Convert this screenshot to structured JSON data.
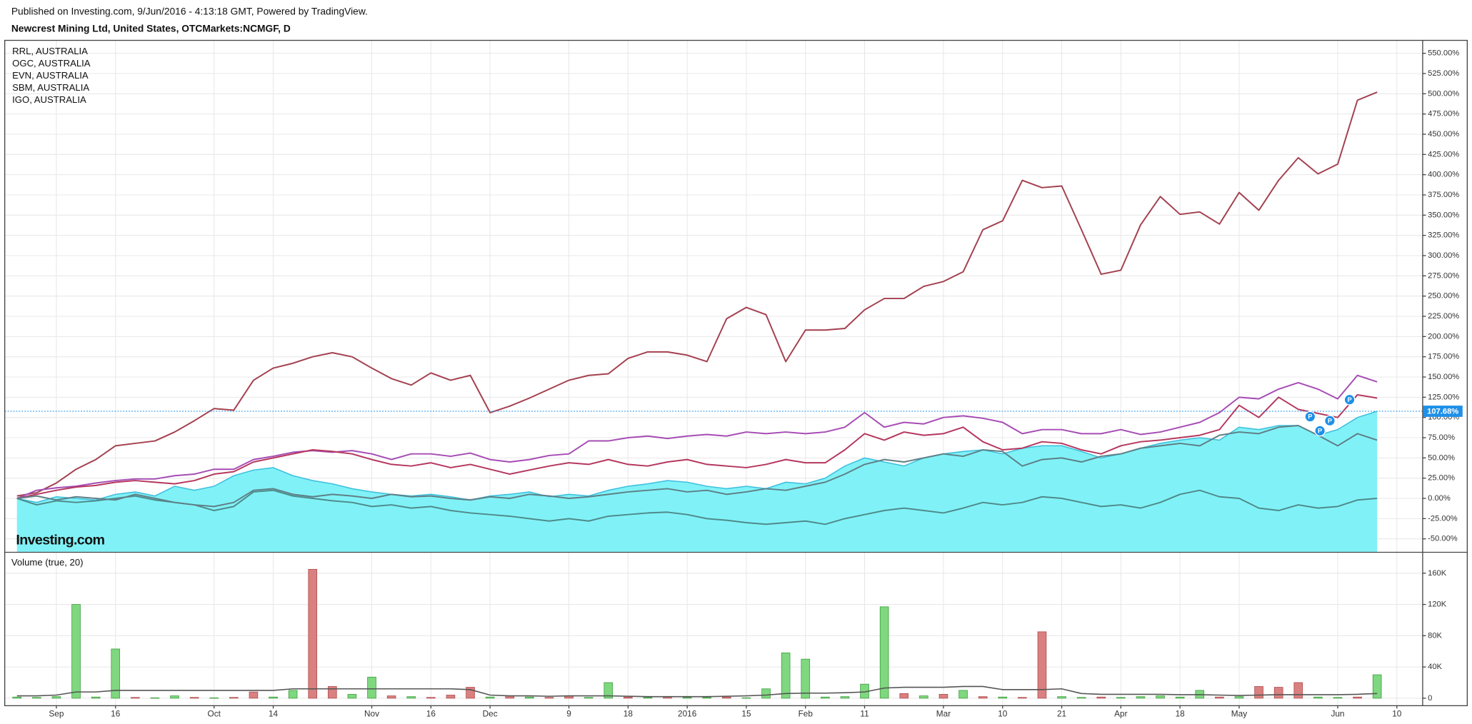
{
  "chart_data": [
    {
      "type": "line",
      "subtitle": "Published on Investing.com, 9/Jun/2016 - 4:13:18 GMT, Powered by TradingView.",
      "title": "Newcrest Mining Ltd, United States, OTCMarkets:NCMGF, D",
      "watermark": "Investing.com",
      "categories": [
        null,
        null,
        "Sep",
        null,
        null,
        "16",
        null,
        null,
        null,
        null,
        "Oct",
        null,
        null,
        "14",
        null,
        null,
        null,
        null,
        "Nov",
        null,
        null,
        "16",
        null,
        null,
        "Dec",
        null,
        null,
        null,
        "9",
        null,
        null,
        "18",
        null,
        null,
        "2016",
        null,
        null,
        "15",
        null,
        null,
        "Feb",
        null,
        null,
        "11",
        null,
        null,
        null,
        "Mar",
        null,
        null,
        "10",
        null,
        null,
        "21",
        null,
        null,
        "Apr",
        null,
        null,
        "18",
        null,
        null,
        "May",
        null,
        null,
        null,
        null,
        "Jun",
        null,
        null,
        "10"
      ],
      "ylim": [
        -66,
        566
      ],
      "yticks": [
        {
          "value": -50,
          "label": "-50.00%"
        },
        {
          "value": -25,
          "label": "-25.00%"
        },
        {
          "value": 0,
          "label": "0.00%"
        },
        {
          "value": 25,
          "label": "25.00%"
        },
        {
          "value": 50,
          "label": "50.00%"
        },
        {
          "value": 75,
          "label": "75.00%"
        },
        {
          "value": 100,
          "label": "100.00%"
        },
        {
          "value": 125,
          "label": "125.00%"
        },
        {
          "value": 150,
          "label": "150.00%"
        },
        {
          "value": 175,
          "label": "175.00%"
        },
        {
          "value": 200,
          "label": "200.00%"
        },
        {
          "value": 225,
          "label": "225.00%"
        },
        {
          "value": 250,
          "label": "250.00%"
        },
        {
          "value": 275,
          "label": "275.00%"
        },
        {
          "value": 300,
          "label": "300.00%"
        },
        {
          "value": 325,
          "label": "325.00%"
        },
        {
          "value": 350,
          "label": "350.00%"
        },
        {
          "value": 375,
          "label": "375.00%"
        },
        {
          "value": 400,
          "label": "400.00%"
        },
        {
          "value": 425,
          "label": "425.00%"
        },
        {
          "value": 450,
          "label": "450.00%"
        },
        {
          "value": 475,
          "label": "475.00%"
        },
        {
          "value": 500,
          "label": "500.00%"
        },
        {
          "value": 525,
          "label": "525.00%"
        },
        {
          "value": 550,
          "label": "550.00%"
        }
      ],
      "grid": true,
      "legend": "top-left",
      "main": {
        "color": "#80f2f7",
        "line_color": "#3fc0de",
        "values": [
          0,
          -5,
          2,
          0,
          -2,
          5,
          8,
          3,
          15,
          10,
          15,
          28,
          35,
          38,
          28,
          22,
          18,
          12,
          8,
          5,
          3,
          5,
          2,
          -2,
          3,
          5,
          8,
          2,
          5,
          3,
          10,
          15,
          18,
          22,
          20,
          15,
          12,
          15,
          12,
          20,
          18,
          25,
          40,
          50,
          45,
          40,
          50,
          55,
          58,
          60,
          55,
          62,
          65,
          65,
          58,
          50,
          55,
          62,
          68,
          72,
          75,
          72,
          88,
          85,
          90,
          90,
          78,
          85,
          100,
          107.68,
          null
        ]
      },
      "last_price": {
        "value": 107.68,
        "label": "107.68%",
        "color": "#1e90e8"
      },
      "series": [
        {
          "name": "RRL, AUSTRALIA",
          "color": "#a3404f",
          "values": [
            3,
            7,
            19,
            36,
            48,
            65,
            68,
            71,
            82,
            96,
            111,
            109,
            146,
            161,
            167,
            175,
            180,
            175,
            161,
            148,
            140,
            155,
            146,
            152,
            106,
            114,
            124,
            135,
            146,
            152,
            154,
            173,
            181,
            181,
            177,
            169,
            222,
            236,
            227,
            169,
            208,
            208,
            210,
            233,
            247,
            247,
            262,
            268,
            280,
            332,
            343,
            393,
            384,
            386,
            332,
            277,
            282,
            338,
            373,
            351,
            354,
            339,
            378,
            356,
            393,
            421,
            401,
            413,
            492,
            502,
            null
          ]
        },
        {
          "name": "OGC, AUSTRALIA",
          "color": "#a64cb4",
          "values": [
            0,
            10,
            13,
            15,
            19,
            22,
            24,
            24,
            28,
            30,
            36,
            36,
            48,
            52,
            57,
            59,
            57,
            59,
            55,
            48,
            55,
            55,
            52,
            56,
            48,
            45,
            48,
            53,
            55,
            71,
            71,
            75,
            77,
            74,
            77,
            79,
            77,
            82,
            80,
            82,
            80,
            82,
            88,
            106,
            88,
            94,
            92,
            100,
            102,
            99,
            94,
            80,
            85,
            85,
            80,
            80,
            85,
            79,
            82,
            88,
            94,
            106,
            125,
            123,
            135,
            143,
            135,
            123,
            152,
            144,
            null
          ]
        },
        {
          "name": "EVN, AUSTRALIA",
          "color": "#b5375e",
          "values": [
            0,
            5,
            10,
            14,
            16,
            20,
            22,
            20,
            18,
            22,
            30,
            33,
            45,
            50,
            55,
            60,
            58,
            55,
            48,
            42,
            40,
            44,
            38,
            42,
            36,
            30,
            35,
            40,
            44,
            42,
            48,
            42,
            40,
            45,
            48,
            42,
            40,
            38,
            42,
            48,
            44,
            44,
            60,
            80,
            72,
            82,
            78,
            80,
            88,
            70,
            60,
            62,
            70,
            68,
            60,
            55,
            65,
            70,
            72,
            75,
            78,
            85,
            115,
            100,
            125,
            110,
            105,
            100,
            128,
            124,
            null
          ]
        },
        {
          "name": "SBM, AUSTRALIA",
          "color": "#4f8a8b",
          "values": [
            0,
            -8,
            -3,
            -5,
            -3,
            0,
            3,
            -2,
            -5,
            -8,
            -15,
            -10,
            8,
            10,
            3,
            0,
            -3,
            -5,
            -10,
            -8,
            -12,
            -10,
            -15,
            -18,
            -20,
            -22,
            -25,
            -28,
            -25,
            -28,
            -22,
            -20,
            -18,
            -17,
            -20,
            -25,
            -27,
            -30,
            -32,
            -30,
            -28,
            -32,
            -25,
            -20,
            -15,
            -12,
            -15,
            -18,
            -12,
            -5,
            -8,
            -5,
            2,
            0,
            -5,
            -10,
            -8,
            -12,
            -5,
            5,
            10,
            2,
            0,
            -12,
            -15,
            -8,
            -12,
            -10,
            -2,
            0,
            null
          ]
        },
        {
          "name": "IGO, AUSTRALIA",
          "color": "#5f7f87",
          "values": [
            0,
            3,
            -2,
            2,
            0,
            -2,
            5,
            0,
            -5,
            -8,
            -10,
            -5,
            10,
            12,
            5,
            2,
            5,
            3,
            0,
            5,
            2,
            3,
            0,
            -2,
            2,
            0,
            5,
            3,
            0,
            2,
            5,
            8,
            10,
            12,
            8,
            10,
            5,
            8,
            12,
            10,
            15,
            20,
            30,
            42,
            48,
            45,
            50,
            55,
            52,
            60,
            58,
            40,
            48,
            50,
            45,
            52,
            55,
            62,
            65,
            68,
            65,
            78,
            82,
            80,
            88,
            90,
            78,
            65,
            80,
            72,
            null
          ]
        }
      ],
      "events": [
        {
          "x": 65.6,
          "y": 101,
          "label": "P"
        },
        {
          "x": 66.1,
          "y": 83.5,
          "label": "P"
        },
        {
          "x": 66.6,
          "y": 96,
          "label": "P"
        },
        {
          "x": 67.6,
          "y": 122,
          "label": "P"
        }
      ],
      "event_color": "#1e90e8"
    },
    {
      "type": "bar",
      "title": "Volume (true, 20)",
      "ylim": [
        -9600,
        185000
      ],
      "yticks": [
        0,
        {
          "value": 40000,
          "label": "40K"
        },
        {
          "value": 80000,
          "label": "80K"
        },
        {
          "value": 120000,
          "label": "120K"
        },
        {
          "value": 160000,
          "label": "160K"
        }
      ],
      "colors": {
        "up": "#7fd77f",
        "down": "#d98080",
        "ma": "#555555"
      },
      "values": [
        1500,
        1000,
        2000,
        120000,
        1500,
        63000,
        1000,
        500,
        3000,
        1000,
        500,
        1000,
        8000,
        1500,
        10000,
        165000,
        15000,
        5000,
        27000,
        3000,
        2000,
        1000,
        4000,
        14000,
        1500,
        3000,
        1500,
        1000,
        3000,
        1000,
        20000,
        1500,
        1000,
        1500,
        1000,
        1000,
        1500,
        500,
        12000,
        58000,
        50000,
        1500,
        2000,
        18000,
        117000,
        6000,
        3000,
        5000,
        10000,
        2000,
        1500,
        1000,
        85000,
        2000,
        1000,
        1500,
        1000,
        2000,
        3000,
        1500,
        10000,
        1500,
        2000,
        15000,
        14000,
        20000,
        1500,
        1000,
        1500,
        30000,
        null
      ],
      "direction": [
        "up",
        "up",
        "up",
        "up",
        "up",
        "up",
        "down",
        "up",
        "up",
        "down",
        "up",
        "down",
        "down",
        "up",
        "up",
        "down",
        "down",
        "up",
        "up",
        "down",
        "up",
        "down",
        "down",
        "down",
        "up",
        "down",
        "up",
        "down",
        "down",
        "up",
        "up",
        "down",
        "up",
        "down",
        "up",
        "up",
        "down",
        "up",
        "up",
        "up",
        "up",
        "up",
        "up",
        "up",
        "up",
        "down",
        "up",
        "down",
        "up",
        "down",
        "up",
        "down",
        "down",
        "up",
        "up",
        "down",
        "up",
        "up",
        "up",
        "up",
        "up",
        "down",
        "up",
        "down",
        "down",
        "down",
        "up",
        "up",
        "down",
        "up",
        null
      ],
      "ma_values": [
        3000,
        3000,
        4000,
        8000,
        8000,
        10000,
        10000,
        10000,
        10000,
        10000,
        10000,
        10000,
        10000,
        10000,
        12000,
        12000,
        12000,
        12000,
        12000,
        12000,
        12000,
        12000,
        12000,
        11000,
        4000,
        3000,
        3000,
        2500,
        3000,
        3000,
        3000,
        2500,
        2000,
        2000,
        2000,
        2000,
        2500,
        3000,
        4000,
        6000,
        6500,
        6500,
        7000,
        8000,
        13000,
        14000,
        14000,
        14000,
        15000,
        15000,
        11000,
        11000,
        11000,
        12000,
        6000,
        5000,
        5000,
        5000,
        5000,
        4500,
        4500,
        4000,
        3500,
        4000,
        4500,
        4500,
        4500,
        4500,
        5000,
        6000,
        null
      ]
    }
  ]
}
